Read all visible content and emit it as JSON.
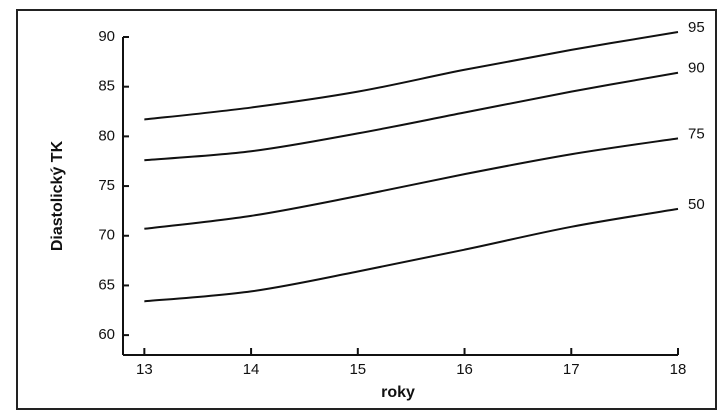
{
  "chart_data": {
    "type": "line",
    "x": [
      13,
      14,
      15,
      16,
      17,
      18
    ],
    "series": [
      {
        "name": "95",
        "color": "#111111",
        "values": [
          81.7,
          82.9,
          84.5,
          86.7,
          88.7,
          90.5
        ]
      },
      {
        "name": "90",
        "color": "#111111",
        "values": [
          77.6,
          78.5,
          80.3,
          82.4,
          84.5,
          86.4
        ]
      },
      {
        "name": "75",
        "color": "#111111",
        "values": [
          70.7,
          72.0,
          74.0,
          76.2,
          78.2,
          79.8
        ]
      },
      {
        "name": "50",
        "color": "#111111",
        "values": [
          63.4,
          64.4,
          66.4,
          68.6,
          70.9,
          72.7
        ]
      }
    ],
    "xlabel": "roky",
    "ylabel": "Diastolický TK",
    "xlim": [
      12.8,
      18
    ],
    "xticks": [
      13,
      14,
      15,
      16,
      17,
      18
    ],
    "ylim": [
      58,
      90
    ],
    "yticks": [
      60,
      65,
      70,
      75,
      80,
      85,
      90
    ],
    "grid": false
  }
}
